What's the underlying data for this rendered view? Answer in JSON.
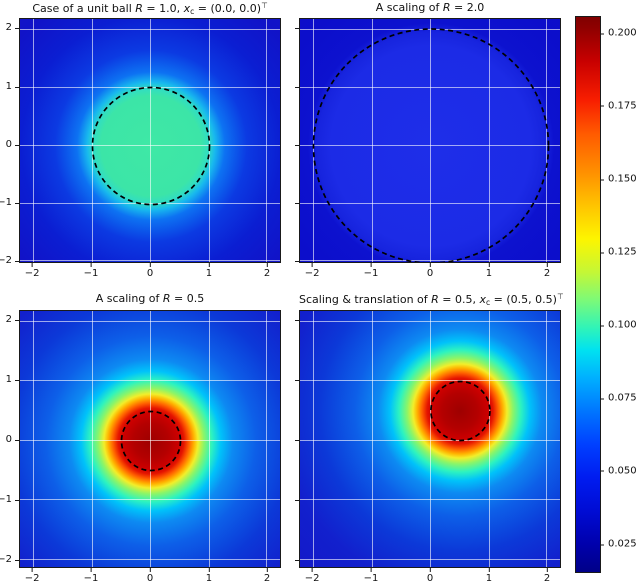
{
  "figure": {
    "axes": {
      "x_ticks": [
        "−2",
        "−1",
        "0",
        "1",
        "2"
      ],
      "y_ticks": [
        "2",
        "1",
        "0",
        "−1",
        "−2"
      ]
    },
    "panels": [
      {
        "id": "unit-ball",
        "title_plain": "Case of a unit ball R = 1.0, x_c = (0.0, 0.0)⊤",
        "title_parts": [
          {
            "t": "Case of a unit ball ",
            "s": "n"
          },
          {
            "t": "R",
            "s": "i"
          },
          {
            "t": " = 1.0, ",
            "s": "n"
          },
          {
            "t": "x",
            "s": "i"
          },
          {
            "t": "c",
            "s": "sub"
          },
          {
            "t": " = (0.0, 0.0)",
            "s": "n"
          },
          {
            "t": "⊤",
            "s": "sup"
          }
        ]
      },
      {
        "id": "scaling-R2",
        "title_plain": "A scaling of R = 2.0",
        "title_parts": [
          {
            "t": "A scaling of ",
            "s": "n"
          },
          {
            "t": "R",
            "s": "i"
          },
          {
            "t": " = 2.0",
            "s": "n"
          }
        ]
      },
      {
        "id": "scaling-R05",
        "title_plain": "A scaling of R = 0.5",
        "title_parts": [
          {
            "t": "A scaling of ",
            "s": "n"
          },
          {
            "t": "R",
            "s": "i"
          },
          {
            "t": " = 0.5",
            "s": "n"
          }
        ]
      },
      {
        "id": "scaling-translation-R05",
        "title_plain": "Scaling & translation of R = 0.5, x_c = (0.5, 0.5)⊤",
        "title_parts": [
          {
            "t": "Scaling & translation of ",
            "s": "n"
          },
          {
            "t": "R",
            "s": "i"
          },
          {
            "t": " = 0.5, ",
            "s": "n"
          },
          {
            "t": "x",
            "s": "i"
          },
          {
            "t": "c",
            "s": "sub"
          },
          {
            "t": " = (0.5, 0.5)",
            "s": "n"
          },
          {
            "t": "⊤",
            "s": "sup"
          }
        ]
      }
    ],
    "colorbar": {
      "tick_labels": [
        "0.200",
        "0.175",
        "0.150",
        "0.125",
        "0.100",
        "0.075",
        "0.050",
        "0.025"
      ]
    },
    "colors": {
      "deep_blue_background": "#1113c9",
      "plateau_green": "#3ce5a7",
      "inner_disc_blue": "#1c2be6",
      "hot_core_red": "#b40000",
      "gridline": "rgba(255,255,255,0.6)",
      "dashed_circle": "#000000",
      "axis_text": "#111111"
    }
  },
  "chart_data": {
    "type": "heatmap",
    "layout": "2x2 grid of density heatmaps with one shared vertical colorbar on the right",
    "colormap": "jet",
    "grid": true,
    "legend": false,
    "colorbar": {
      "tick_values": [
        0.2,
        0.175,
        0.15,
        0.125,
        0.1,
        0.075,
        0.05,
        0.025
      ],
      "value_range_estimate": [
        0.015,
        0.206
      ],
      "orientation": "vertical",
      "position": "right"
    },
    "panels": [
      {
        "title": "Case of a unit ball R = 1.0, x_c = (0.0, 0.0)^T",
        "xlim": [
          -2.25,
          2.25
        ],
        "ylim": [
          -2.25,
          2.25
        ],
        "x_tick_values": [
          -2,
          -1,
          0,
          1,
          2
        ],
        "y_tick_values": [
          2,
          1,
          0,
          -1,
          -2
        ],
        "overlay_circle": {
          "center": [
            0.0,
            0.0
          ],
          "radius": 1.0,
          "style": "black dashed"
        },
        "value_estimates": {
          "inside_circle_plateau": 0.103,
          "edge_halo": 0.08,
          "far_field": 0.02
        },
        "pattern": "uniform green plateau inside the dashed unit circle, cyan halo at the boundary, radial decay to deep blue at the corners"
      },
      {
        "title": "A scaling of R = 2.0",
        "xlim": [
          -2.25,
          2.25
        ],
        "ylim": [
          -2.25,
          2.25
        ],
        "x_tick_values": [
          -2,
          -1,
          0,
          1,
          2
        ],
        "y_tick_values": [
          2,
          1,
          0,
          -1,
          -2
        ],
        "overlay_circle": {
          "center": [
            0.0,
            0.0
          ],
          "radius": 2.0,
          "style": "black dashed"
        },
        "value_estimates": {
          "inside_circle_plateau": 0.031,
          "far_field": 0.018
        },
        "pattern": "slightly brighter uniform blue disc filling the dashed circle of radius 2, darker blue outside"
      },
      {
        "title": "A scaling of R = 0.5",
        "xlim": [
          -2.25,
          2.25
        ],
        "ylim": [
          -2.25,
          2.25
        ],
        "x_tick_values": [
          -2,
          -1,
          0,
          1,
          2
        ],
        "y_tick_values": [
          2,
          1,
          0,
          -1,
          -2
        ],
        "overlay_circle": {
          "center": [
            0.0,
            0.0
          ],
          "radius": 0.5,
          "style": "black dashed"
        },
        "value_estimates": {
          "core_peak": "≥0.206 (saturated dark red, clipped at colormap max)",
          "ring_yellow_radius": 0.75,
          "ring_cyan_radius": 1.05,
          "far_field": 0.025
        },
        "pattern": "hot dark-red core slightly larger than the dashed circle of radius 0.5, concentric jet rings (red-orange-yellow-green-cyan) decaying to blue"
      },
      {
        "title": "Scaling & translation of R = 0.5, x_c = (0.5, 0.5)^T",
        "xlim": [
          -2.25,
          2.25
        ],
        "ylim": [
          -2.25,
          2.25
        ],
        "x_tick_values": [
          -2,
          -1,
          0,
          1,
          2
        ],
        "y_tick_values": [
          2,
          1,
          0,
          -1,
          -2
        ],
        "overlay_circle": {
          "center": [
            0.5,
            0.5
          ],
          "radius": 0.5,
          "style": "black dashed"
        },
        "value_estimates": {
          "core_peak": "≥0.206 (saturated dark red, clipped at colormap max)",
          "far_field": 0.025
        },
        "pattern": "same hot-core density as R=0.5 panel but translated so the core is centred at (0.5, 0.5)"
      }
    ]
  }
}
